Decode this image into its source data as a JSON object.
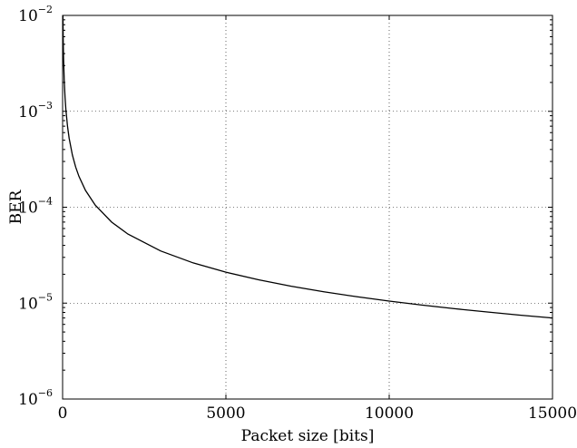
{
  "chart_data": {
    "type": "line",
    "title": "",
    "xlabel": "Packet size [bits]",
    "ylabel": "BER",
    "xlim": [
      0,
      15000
    ],
    "ylim": [
      1e-06,
      0.01
    ],
    "yscale": "log",
    "grid": true,
    "x_ticks": [
      {
        "value": 0,
        "label": "0"
      },
      {
        "value": 5000,
        "label": "5000"
      },
      {
        "value": 10000,
        "label": "10000"
      },
      {
        "value": 15000,
        "label": "15000"
      }
    ],
    "y_ticks": [
      {
        "value": 1e-06,
        "base": "10",
        "exp": "−6"
      },
      {
        "value": 1e-05,
        "base": "10",
        "exp": "−5"
      },
      {
        "value": 0.0001,
        "base": "10",
        "exp": "−4"
      },
      {
        "value": 0.001,
        "base": "10",
        "exp": "−3"
      },
      {
        "value": 0.01,
        "base": "10",
        "exp": "−2"
      }
    ],
    "series": [
      {
        "color": "#000000",
        "x": [
          10,
          20,
          30,
          50,
          75,
          100,
          150,
          200,
          300,
          400,
          500,
          700,
          1000,
          1500,
          2000,
          3000,
          4000,
          5000,
          6000,
          7000,
          8000,
          9000,
          10000,
          11000,
          12000,
          13000,
          14000,
          15000
        ],
        "y": [
          0.0105,
          0.00525,
          0.0035,
          0.0021,
          0.0014,
          0.00105,
          0.0007,
          0.000525,
          0.00035,
          0.0002625,
          0.00021,
          0.00015,
          0.000105,
          7e-05,
          5.25e-05,
          3.5e-05,
          2.625e-05,
          2.1e-05,
          1.75e-05,
          1.5e-05,
          1.313e-05,
          1.167e-05,
          1.05e-05,
          9.55e-06,
          8.75e-06,
          8.08e-06,
          7.5e-06,
          7e-06
        ]
      }
    ]
  }
}
